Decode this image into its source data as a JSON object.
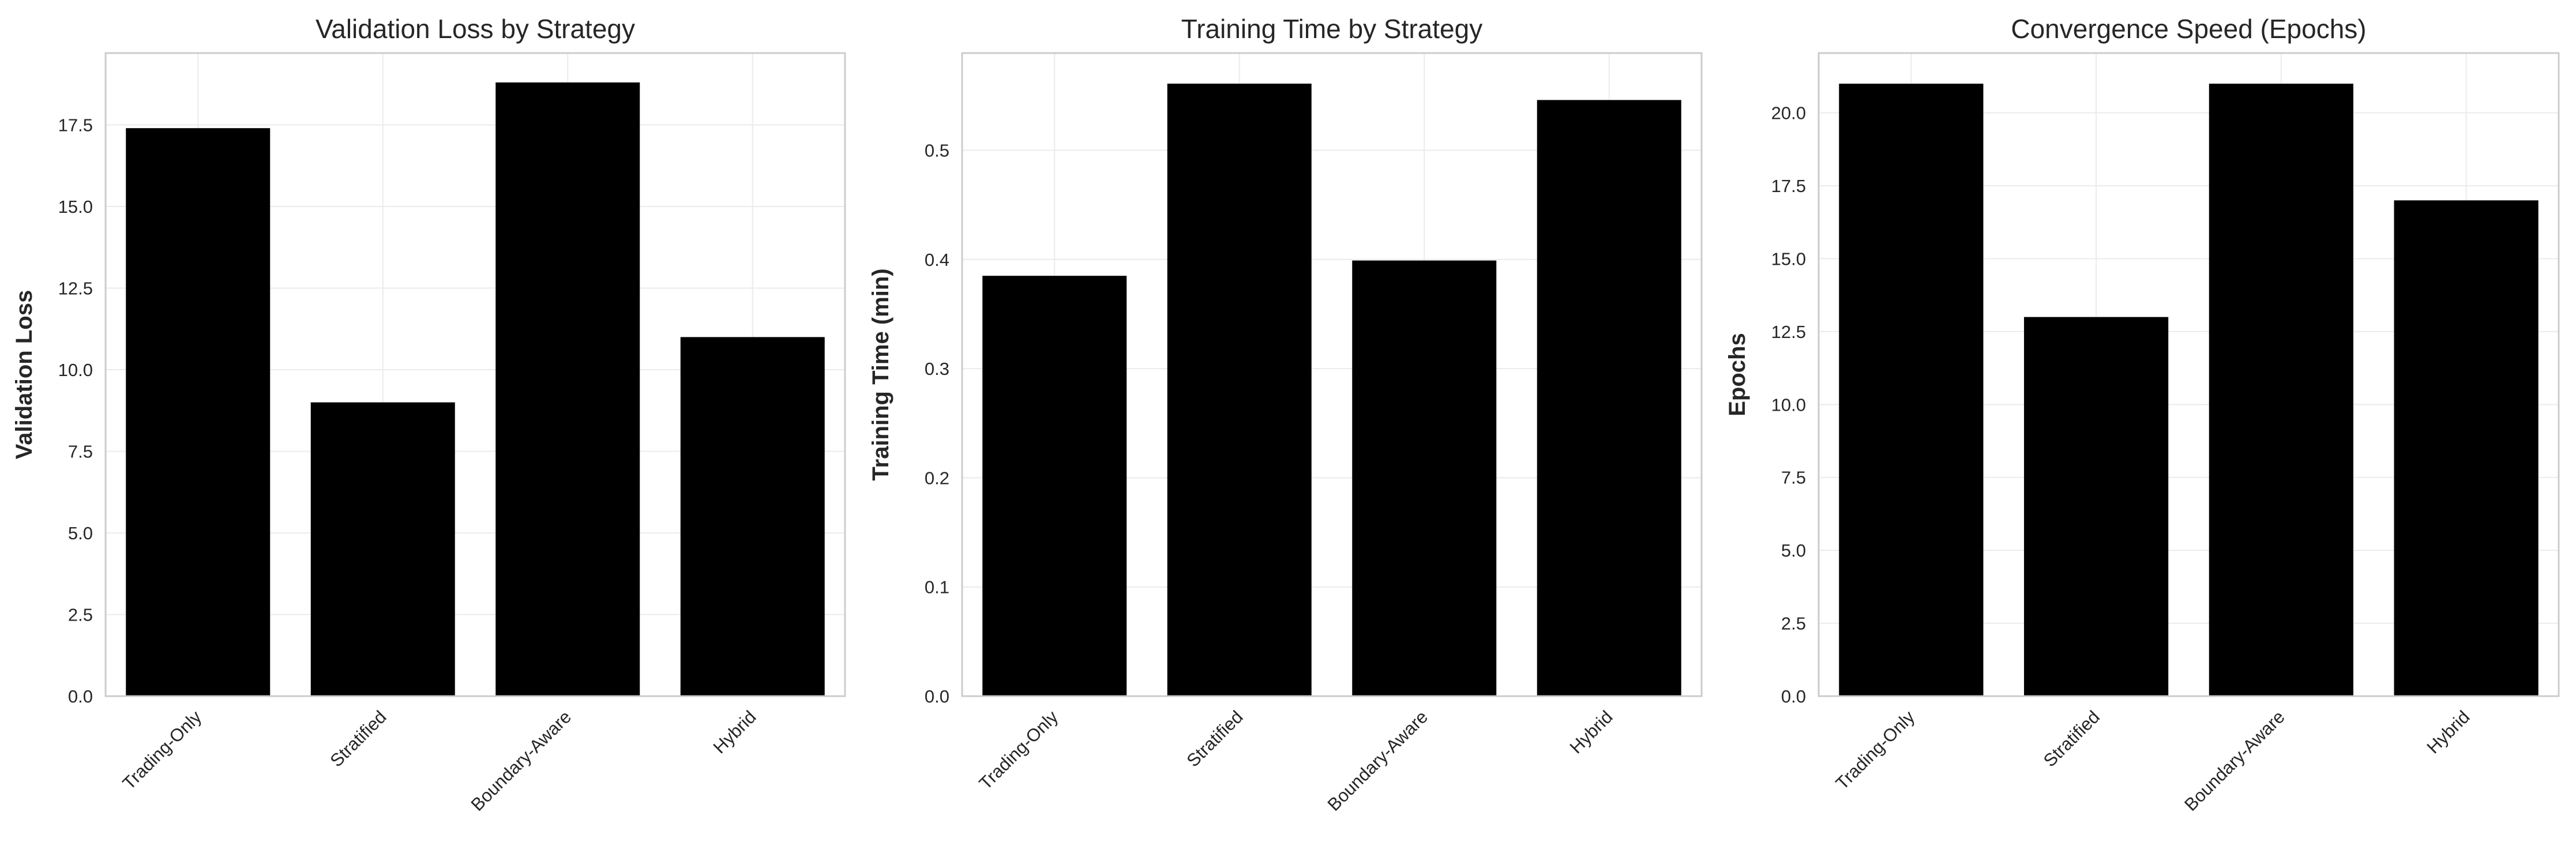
{
  "colors": {
    "bar": "#000000",
    "grid": "#ebebeb",
    "frame": "#cccccc",
    "text": "#262626"
  },
  "chart_data": [
    {
      "type": "bar",
      "title": "Validation Loss by Strategy",
      "xlabel": "",
      "ylabel": "Validation Loss",
      "categories": [
        "Trading-Only",
        "Stratified",
        "Boundary-Aware",
        "Hybrid"
      ],
      "values": [
        17.4,
        9.0,
        18.8,
        11.0
      ],
      "ylim": [
        0,
        19.7
      ],
      "yticks": [
        0.0,
        2.5,
        5.0,
        7.5,
        10.0,
        12.5,
        15.0,
        17.5
      ],
      "ytick_labels": [
        "0.0",
        "2.5",
        "5.0",
        "7.5",
        "10.0",
        "12.5",
        "15.0",
        "17.5"
      ],
      "grid": true,
      "legend": "none"
    },
    {
      "type": "bar",
      "title": "Training Time by Strategy",
      "xlabel": "",
      "ylabel": "Training Time (min)",
      "categories": [
        "Trading-Only",
        "Stratified",
        "Boundary-Aware",
        "Hybrid"
      ],
      "values": [
        0.385,
        0.561,
        0.399,
        0.546
      ],
      "ylim": [
        0,
        0.589
      ],
      "yticks": [
        0.0,
        0.1,
        0.2,
        0.3,
        0.4,
        0.5
      ],
      "ytick_labels": [
        "0.0",
        "0.1",
        "0.2",
        "0.3",
        "0.4",
        "0.5"
      ],
      "grid": true,
      "legend": "none"
    },
    {
      "type": "bar",
      "title": "Convergence Speed (Epochs)",
      "xlabel": "",
      "ylabel": "Epochs",
      "categories": [
        "Trading-Only",
        "Stratified",
        "Boundary-Aware",
        "Hybrid"
      ],
      "values": [
        21,
        13,
        21,
        17
      ],
      "ylim": [
        0,
        22.05
      ],
      "yticks": [
        0.0,
        2.5,
        5.0,
        7.5,
        10.0,
        12.5,
        15.0,
        17.5,
        20.0
      ],
      "ytick_labels": [
        "0.0",
        "2.5",
        "5.0",
        "7.5",
        "10.0",
        "12.5",
        "15.0",
        "17.5",
        "20.0"
      ],
      "grid": true,
      "legend": "none"
    }
  ]
}
